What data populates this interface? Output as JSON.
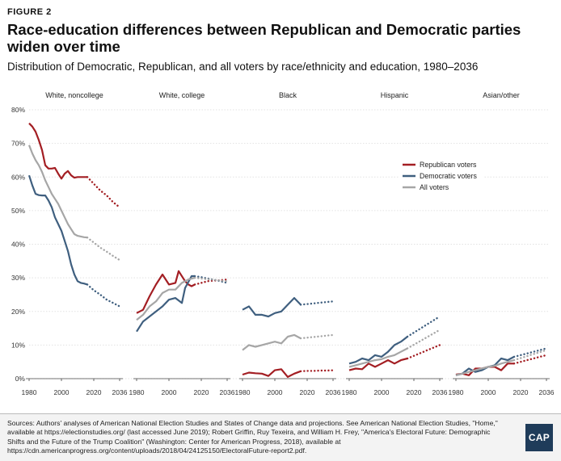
{
  "figure_label": "FIGURE 2",
  "title": "Race-education differences between Republican and Democratic parties widen over time",
  "subtitle": "Distribution of Democratic, Republican, and all voters by race/ethnicity and education, 1980–2036",
  "sources": "Sources: Authors' analyses of American National Election Studies and States of Change data and projections. See American National Election Studies, \"Home,\" available at https://electionstudies.org/ (last accessed June 2019); Robert Griffin, Ruy Texeira, and William H. Frey, \"America's Electoral Future: Demographic Shifts and the Future of the Trump Coalition\" (Washington: Center for American Progress, 2018), available at https://cdn.americanprogress.org/content/uploads/2018/04/24125150/ElectoralFuture-report2.pdf.",
  "logo": "CAP",
  "colors": {
    "republican": "#a31e23",
    "democratic": "#3f5f7f",
    "all": "#a6a6a6",
    "grid": "#e2e2e2",
    "axis": "#444444"
  },
  "chart_data": {
    "type": "line",
    "ylim": [
      0,
      80
    ],
    "yticks": [
      "0%",
      "10%",
      "20%",
      "30%",
      "40%",
      "50%",
      "60%",
      "70%",
      "80%"
    ],
    "xlim": [
      1980,
      2036
    ],
    "xticks": [
      "1980",
      "2000",
      "2020",
      "2036"
    ],
    "legend": [
      "Republican voters",
      "Democratic voters",
      "All voters"
    ],
    "legend_position": "Hispanic panel, upper",
    "line_style_note": "solid through 2016, dotted projection 2016–2036",
    "panels": [
      {
        "title": "White, noncollege",
        "series": [
          {
            "name": "Republican voters",
            "x": [
              1980,
              1982,
              1984,
              1986,
              1988,
              1990,
              1992,
              1994,
              1996,
              1998,
              2000,
              2002,
              2004,
              2006,
              2008,
              2010,
              2012,
              2014,
              2016
            ],
            "y": [
              76,
              75,
              73.5,
              71,
              68,
              63.5,
              62.5,
              62.5,
              62.7,
              61,
              59.5,
              61,
              61.8,
              60.5,
              59.8,
              60,
              60,
              60,
              60
            ]
          },
          {
            "name": "Democratic voters",
            "x": [
              1980,
              1982,
              1984,
              1986,
              1988,
              1990,
              1992,
              1994,
              1996,
              1998,
              2000,
              2002,
              2004,
              2006,
              2008,
              2010,
              2012,
              2014,
              2016
            ],
            "y": [
              60.5,
              57.5,
              55,
              54.6,
              54.5,
              54.5,
              53,
              51,
              48,
              46,
              44,
              41,
              38,
              34,
              31,
              29,
              28.5,
              28.3,
              28
            ]
          },
          {
            "name": "All voters",
            "x": [
              1980,
              1982,
              1984,
              1986,
              1988,
              1990,
              1992,
              1994,
              1996,
              1998,
              2000,
              2002,
              2004,
              2006,
              2008,
              2010,
              2012,
              2014,
              2016
            ],
            "y": [
              69.5,
              67,
              65,
              63.5,
              61.5,
              59,
              57,
              55,
              53.5,
              52,
              50,
              48,
              46,
              44.5,
              43,
              42.5,
              42.3,
              42.1,
              42
            ]
          },
          {
            "name": "Republican projection",
            "x": [
              2016,
              2020,
              2024,
              2028,
              2032,
              2036
            ],
            "y": [
              60,
              58,
              56,
              54.5,
              52.5,
              51
            ],
            "dotted": true
          },
          {
            "name": "Democratic projection",
            "x": [
              2016,
              2020,
              2024,
              2028,
              2032,
              2036
            ],
            "y": [
              28,
              26.3,
              25,
              23.5,
              22.5,
              21.5
            ],
            "dotted": true
          },
          {
            "name": "All voters projection",
            "x": [
              2016,
              2020,
              2024,
              2028,
              2032,
              2036
            ],
            "y": [
              42,
              40.5,
              39,
              37.8,
              36.5,
              35.3
            ],
            "dotted": true
          }
        ]
      },
      {
        "title": "White, college",
        "series": [
          {
            "name": "Republican voters",
            "x": [
              1980,
              1984,
              1988,
              1992,
              1996,
              2000,
              2004,
              2006,
              2010,
              2012,
              2014,
              2016
            ],
            "y": [
              19.5,
              20.5,
              24.5,
              28,
              31,
              28,
              28.5,
              32,
              29,
              28,
              27.5,
              28
            ]
          },
          {
            "name": "Democratic voters",
            "x": [
              1980,
              1984,
              1988,
              1992,
              1996,
              2000,
              2004,
              2008,
              2010,
              2014,
              2016
            ],
            "y": [
              14,
              17,
              18.5,
              20,
              21.5,
              23.5,
              24,
              22.5,
              27,
              30.5,
              30.5
            ]
          },
          {
            "name": "All voters",
            "x": [
              1980,
              1984,
              1988,
              1992,
              1996,
              2000,
              2004,
              2008,
              2012,
              2016
            ],
            "y": [
              17.5,
              19,
              21.5,
              23,
              25.5,
              26.5,
              26.5,
              28.5,
              29.5,
              30
            ]
          },
          {
            "name": "Republican projection",
            "x": [
              2016,
              2020,
              2024,
              2028,
              2032,
              2036
            ],
            "y": [
              28,
              28.5,
              29,
              29.2,
              29.3,
              29.5
            ],
            "dotted": true
          },
          {
            "name": "Democratic projection",
            "x": [
              2016,
              2020,
              2024,
              2028,
              2032,
              2036
            ],
            "y": [
              30.5,
              30.2,
              29.8,
              29.4,
              29,
              28.5
            ],
            "dotted": true
          },
          {
            "name": "All voters projection",
            "x": [
              2016,
              2020,
              2024,
              2028,
              2032,
              2036
            ],
            "y": [
              30,
              29.8,
              29.6,
              29.4,
              29.2,
              29
            ],
            "dotted": true
          }
        ]
      },
      {
        "title": "Black",
        "series": [
          {
            "name": "Republican voters",
            "x": [
              1980,
              1984,
              1988,
              1992,
              1996,
              2000,
              2004,
              2008,
              2012,
              2016
            ],
            "y": [
              1.2,
              1.8,
              1.6,
              1.5,
              0.8,
              2.5,
              2.8,
              0.5,
              1.5,
              2.2
            ]
          },
          {
            "name": "Democratic voters",
            "x": [
              1980,
              1984,
              1988,
              1992,
              1996,
              2000,
              2004,
              2008,
              2012,
              2016
            ],
            "y": [
              20.5,
              21.5,
              19,
              19,
              18.5,
              19.5,
              20,
              22,
              24,
              22
            ]
          },
          {
            "name": "All voters",
            "x": [
              1980,
              1984,
              1988,
              1992,
              1996,
              2000,
              2004,
              2008,
              2012,
              2016
            ],
            "y": [
              8.5,
              10,
              9.5,
              10,
              10.5,
              11,
              10.5,
              12.5,
              13,
              12
            ]
          },
          {
            "name": "Republican projection",
            "x": [
              2016,
              2020,
              2024,
              2028,
              2032,
              2036
            ],
            "y": [
              2.2,
              2.3,
              2.3,
              2.4,
              2.4,
              2.5
            ],
            "dotted": true
          },
          {
            "name": "Democratic projection",
            "x": [
              2016,
              2020,
              2024,
              2028,
              2032,
              2036
            ],
            "y": [
              22,
              22.2,
              22.4,
              22.6,
              22.8,
              23
            ],
            "dotted": true
          },
          {
            "name": "All voters projection",
            "x": [
              2016,
              2020,
              2024,
              2028,
              2032,
              2036
            ],
            "y": [
              12,
              12.2,
              12.4,
              12.6,
              12.8,
              13
            ],
            "dotted": true
          }
        ]
      },
      {
        "title": "Hispanic",
        "series": [
          {
            "name": "Republican voters",
            "x": [
              1980,
              1984,
              1988,
              1992,
              1996,
              2000,
              2004,
              2008,
              2012,
              2016
            ],
            "y": [
              2.5,
              3,
              2.8,
              4.5,
              3.5,
              4.5,
              5.5,
              4.5,
              5.5,
              6
            ]
          },
          {
            "name": "Democratic voters",
            "x": [
              1980,
              1984,
              1988,
              1992,
              1996,
              2000,
              2004,
              2008,
              2012,
              2016
            ],
            "y": [
              4.5,
              5,
              6,
              5.5,
              7,
              6.5,
              8,
              10,
              11,
              12.5
            ]
          },
          {
            "name": "All voters",
            "x": [
              1980,
              1984,
              1988,
              1992,
              1996,
              2000,
              2004,
              2008,
              2012,
              2016
            ],
            "y": [
              3.5,
              4,
              4.5,
              5,
              5.5,
              5.8,
              6.5,
              7,
              8,
              9
            ]
          },
          {
            "name": "Republican projection",
            "x": [
              2016,
              2020,
              2024,
              2028,
              2032,
              2036
            ],
            "y": [
              6,
              6.8,
              7.6,
              8.4,
              9.2,
              10
            ],
            "dotted": true
          },
          {
            "name": "Democratic projection",
            "x": [
              2016,
              2020,
              2024,
              2028,
              2032,
              2036
            ],
            "y": [
              12.5,
              13.7,
              14.9,
              16.1,
              17.3,
              18.5
            ],
            "dotted": true
          },
          {
            "name": "All voters projection",
            "x": [
              2016,
              2020,
              2024,
              2028,
              2032,
              2036
            ],
            "y": [
              9,
              10.1,
              11.2,
              12.3,
              13.4,
              14.5
            ],
            "dotted": true
          }
        ]
      },
      {
        "title": "Asian/other",
        "series": [
          {
            "name": "Republican voters",
            "x": [
              1980,
              1984,
              1988,
              1992,
              1996,
              2000,
              2004,
              2008,
              2012,
              2016
            ],
            "y": [
              1.2,
              1.5,
              1,
              3,
              3,
              3.5,
              3.5,
              2.5,
              4.5,
              4.5
            ]
          },
          {
            "name": "Democratic voters",
            "x": [
              1980,
              1984,
              1988,
              1992,
              1996,
              2000,
              2004,
              2008,
              2012,
              2016
            ],
            "y": [
              1,
              1.5,
              3,
              2,
              2.5,
              3.5,
              4,
              6,
              5.5,
              6.5
            ]
          },
          {
            "name": "All voters",
            "x": [
              1980,
              1984,
              1988,
              1992,
              1996,
              2000,
              2004,
              2008,
              2012,
              2016
            ],
            "y": [
              1,
              1.5,
              2,
              2.5,
              3,
              3.5,
              3.8,
              4.5,
              5,
              5.5
            ]
          },
          {
            "name": "Republican projection",
            "x": [
              2016,
              2020,
              2024,
              2028,
              2032,
              2036
            ],
            "y": [
              4.5,
              5,
              5.5,
              6,
              6.5,
              7
            ],
            "dotted": true
          },
          {
            "name": "Democratic projection",
            "x": [
              2016,
              2020,
              2024,
              2028,
              2032,
              2036
            ],
            "y": [
              6.5,
              7,
              7.5,
              8,
              8.5,
              9
            ],
            "dotted": true
          },
          {
            "name": "All voters projection",
            "x": [
              2016,
              2020,
              2024,
              2028,
              2032,
              2036
            ],
            "y": [
              5.5,
              6.1,
              6.7,
              7.3,
              7.9,
              8.5
            ],
            "dotted": true
          }
        ]
      }
    ]
  }
}
